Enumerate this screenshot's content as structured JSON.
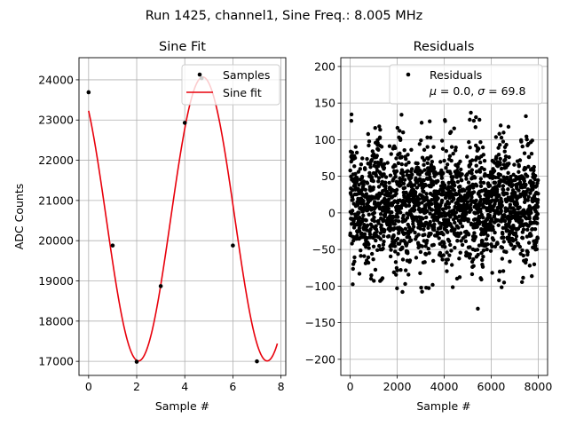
{
  "figure": {
    "suptitle": "Run 1425, channel1, Sine Freq.: 8.005 MHz"
  },
  "chart_data": [
    {
      "type": "scatter+line",
      "title": "Sine Fit",
      "xlabel": "Sample #",
      "ylabel": "ADC Counts",
      "xlim": [
        -0.4,
        8.2
      ],
      "ylim": [
        16650,
        24550
      ],
      "xticks": [
        0,
        2,
        4,
        6,
        8
      ],
      "yticks": [
        17000,
        18000,
        19000,
        20000,
        21000,
        22000,
        23000,
        24000
      ],
      "grid": true,
      "legend_position": "upper right",
      "series": [
        {
          "name": "Samples",
          "style": "points",
          "color": "#000000",
          "points": [
            [
              0,
              23690
            ],
            [
              1,
              19880
            ],
            [
              2,
              16990
            ],
            [
              3,
              18870
            ],
            [
              4,
              22930
            ],
            [
              4.7,
              24040
            ],
            [
              6,
              19880
            ],
            [
              7,
              17000
            ]
          ]
        },
        {
          "name": "Sine fit",
          "style": "line",
          "color": "#e8000b",
          "fit": {
            "offset": 20540,
            "amplitude": 3530,
            "period": 5.35,
            "peak_at": 4.75,
            "x_range": [
              0,
              7.85
            ]
          }
        }
      ]
    },
    {
      "type": "scatter",
      "title": "Residuals",
      "xlabel": "Sample #",
      "xlim": [
        -400,
        8400
      ],
      "ylim": [
        -222,
        212
      ],
      "xticks": [
        0,
        2000,
        4000,
        6000,
        8000
      ],
      "yticks": [
        -200,
        -150,
        -100,
        -50,
        0,
        50,
        100,
        150,
        200
      ],
      "grid": true,
      "legend_position": "upper right",
      "series": [
        {
          "name": "Residuals",
          "color": "#000000",
          "n_points": 8000,
          "mean": 0.0,
          "std": 69.8,
          "envelope_period": 1070
        }
      ],
      "legend_stats": {
        "mu_label": "μ",
        "mu_value": "0.0",
        "sigma_label": "σ",
        "sigma_value": "69.8"
      }
    }
  ]
}
